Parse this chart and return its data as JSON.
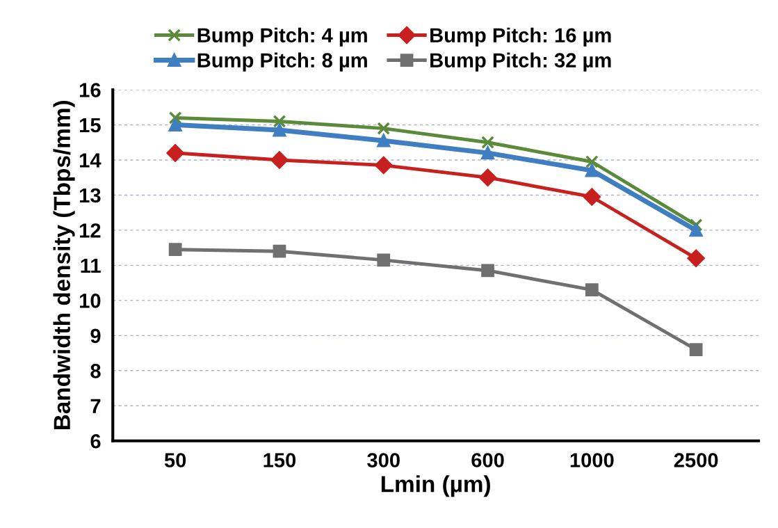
{
  "chart_data": {
    "type": "line",
    "xlabel": "Lmin (µm)",
    "ylabel": "Bandwidth density (Tbps/mm)",
    "categories": [
      "50",
      "150",
      "300",
      "600",
      "1000",
      "2500"
    ],
    "series": [
      {
        "name": "Bump Pitch: 4 µm",
        "color": "#5b8a3a",
        "marker": "cross",
        "values": [
          15.2,
          15.1,
          14.9,
          14.5,
          13.95,
          12.15
        ]
      },
      {
        "name": "Bump Pitch: 8 µm",
        "color": "#3f7ec0",
        "marker": "triangle",
        "values": [
          15.0,
          14.85,
          14.55,
          14.2,
          13.7,
          12.0
        ]
      },
      {
        "name": "Bump Pitch: 16 µm",
        "color": "#c8201f",
        "marker": "diamond",
        "values": [
          14.2,
          14.0,
          13.85,
          13.5,
          12.95,
          11.2
        ]
      },
      {
        "name": "Bump Pitch: 32 µm",
        "color": "#707070",
        "marker": "square",
        "values": [
          11.45,
          11.4,
          11.15,
          10.85,
          10.3,
          8.6
        ]
      }
    ],
    "ylim": [
      6,
      16
    ],
    "yticks": [
      6,
      7,
      8,
      9,
      10,
      11,
      12,
      13,
      14,
      15,
      16
    ],
    "grid": "y",
    "legend": "top"
  }
}
